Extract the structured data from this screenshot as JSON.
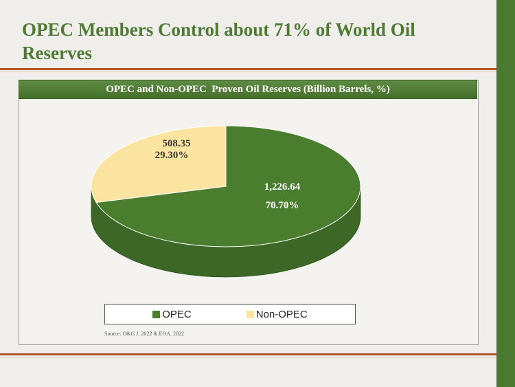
{
  "slide": {
    "title": "OPEC Members Control about 71% of World Oil Reserves",
    "source": "Source: O&G J. 2022 & EOA. 2022"
  },
  "colors": {
    "opec": "#4b7d2f",
    "opec_side": "#3d6726",
    "non_opec": "#fbe4a0",
    "non_opec_side": "#e8cc80",
    "accent_rule": "#b5562d",
    "title_green": "#4e7a34"
  },
  "chart_data": {
    "type": "pie",
    "title": "OPEC and Non-OPEC  Proven Oil Reserves (Billion Barrels, %)",
    "labels": [
      "OPEC",
      "Non-OPEC"
    ],
    "values": [
      1226.64,
      508.35
    ],
    "percents": [
      70.7,
      29.3
    ],
    "value_labels": [
      "1,226.64",
      "508.35"
    ],
    "percent_labels": [
      "70.70%",
      "29.30%"
    ],
    "legend": {
      "position": "bottom",
      "entries": [
        "OPEC",
        "Non-OPEC"
      ]
    }
  }
}
